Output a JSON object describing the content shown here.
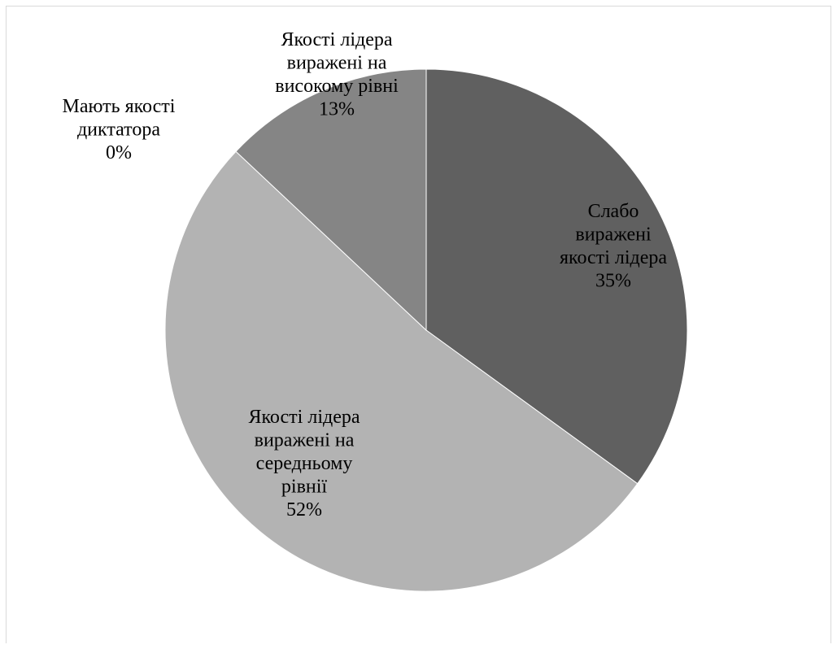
{
  "chart_data": {
    "type": "pie",
    "title": "",
    "start_angle_deg": 0,
    "direction": "clockwise",
    "slices": [
      {
        "category": "Слабо виражені якості лідера",
        "label_lines": [
          "Слабо",
          "виражені",
          "якості лідера"
        ],
        "value": 35,
        "percent_label": "35%",
        "color": "#606060"
      },
      {
        "category": "Якості лідера виражені на середньому рівнії",
        "label_lines": [
          "Якості лідера",
          "виражені на",
          "середньому",
          "рівнії"
        ],
        "value": 52,
        "percent_label": "52%",
        "color": "#b3b3b3"
      },
      {
        "category": "Якості лідера виражені на високому рівні",
        "label_lines": [
          "Якості лідера",
          "виражені на",
          "високому рівні"
        ],
        "value": 13,
        "percent_label": "13%",
        "color": "#858585"
      },
      {
        "category": "Мають якості диктатора",
        "label_lines": [
          "Мають якості",
          "диктатора"
        ],
        "value": 0,
        "percent_label": "0%",
        "color": "#404040"
      }
    ]
  }
}
